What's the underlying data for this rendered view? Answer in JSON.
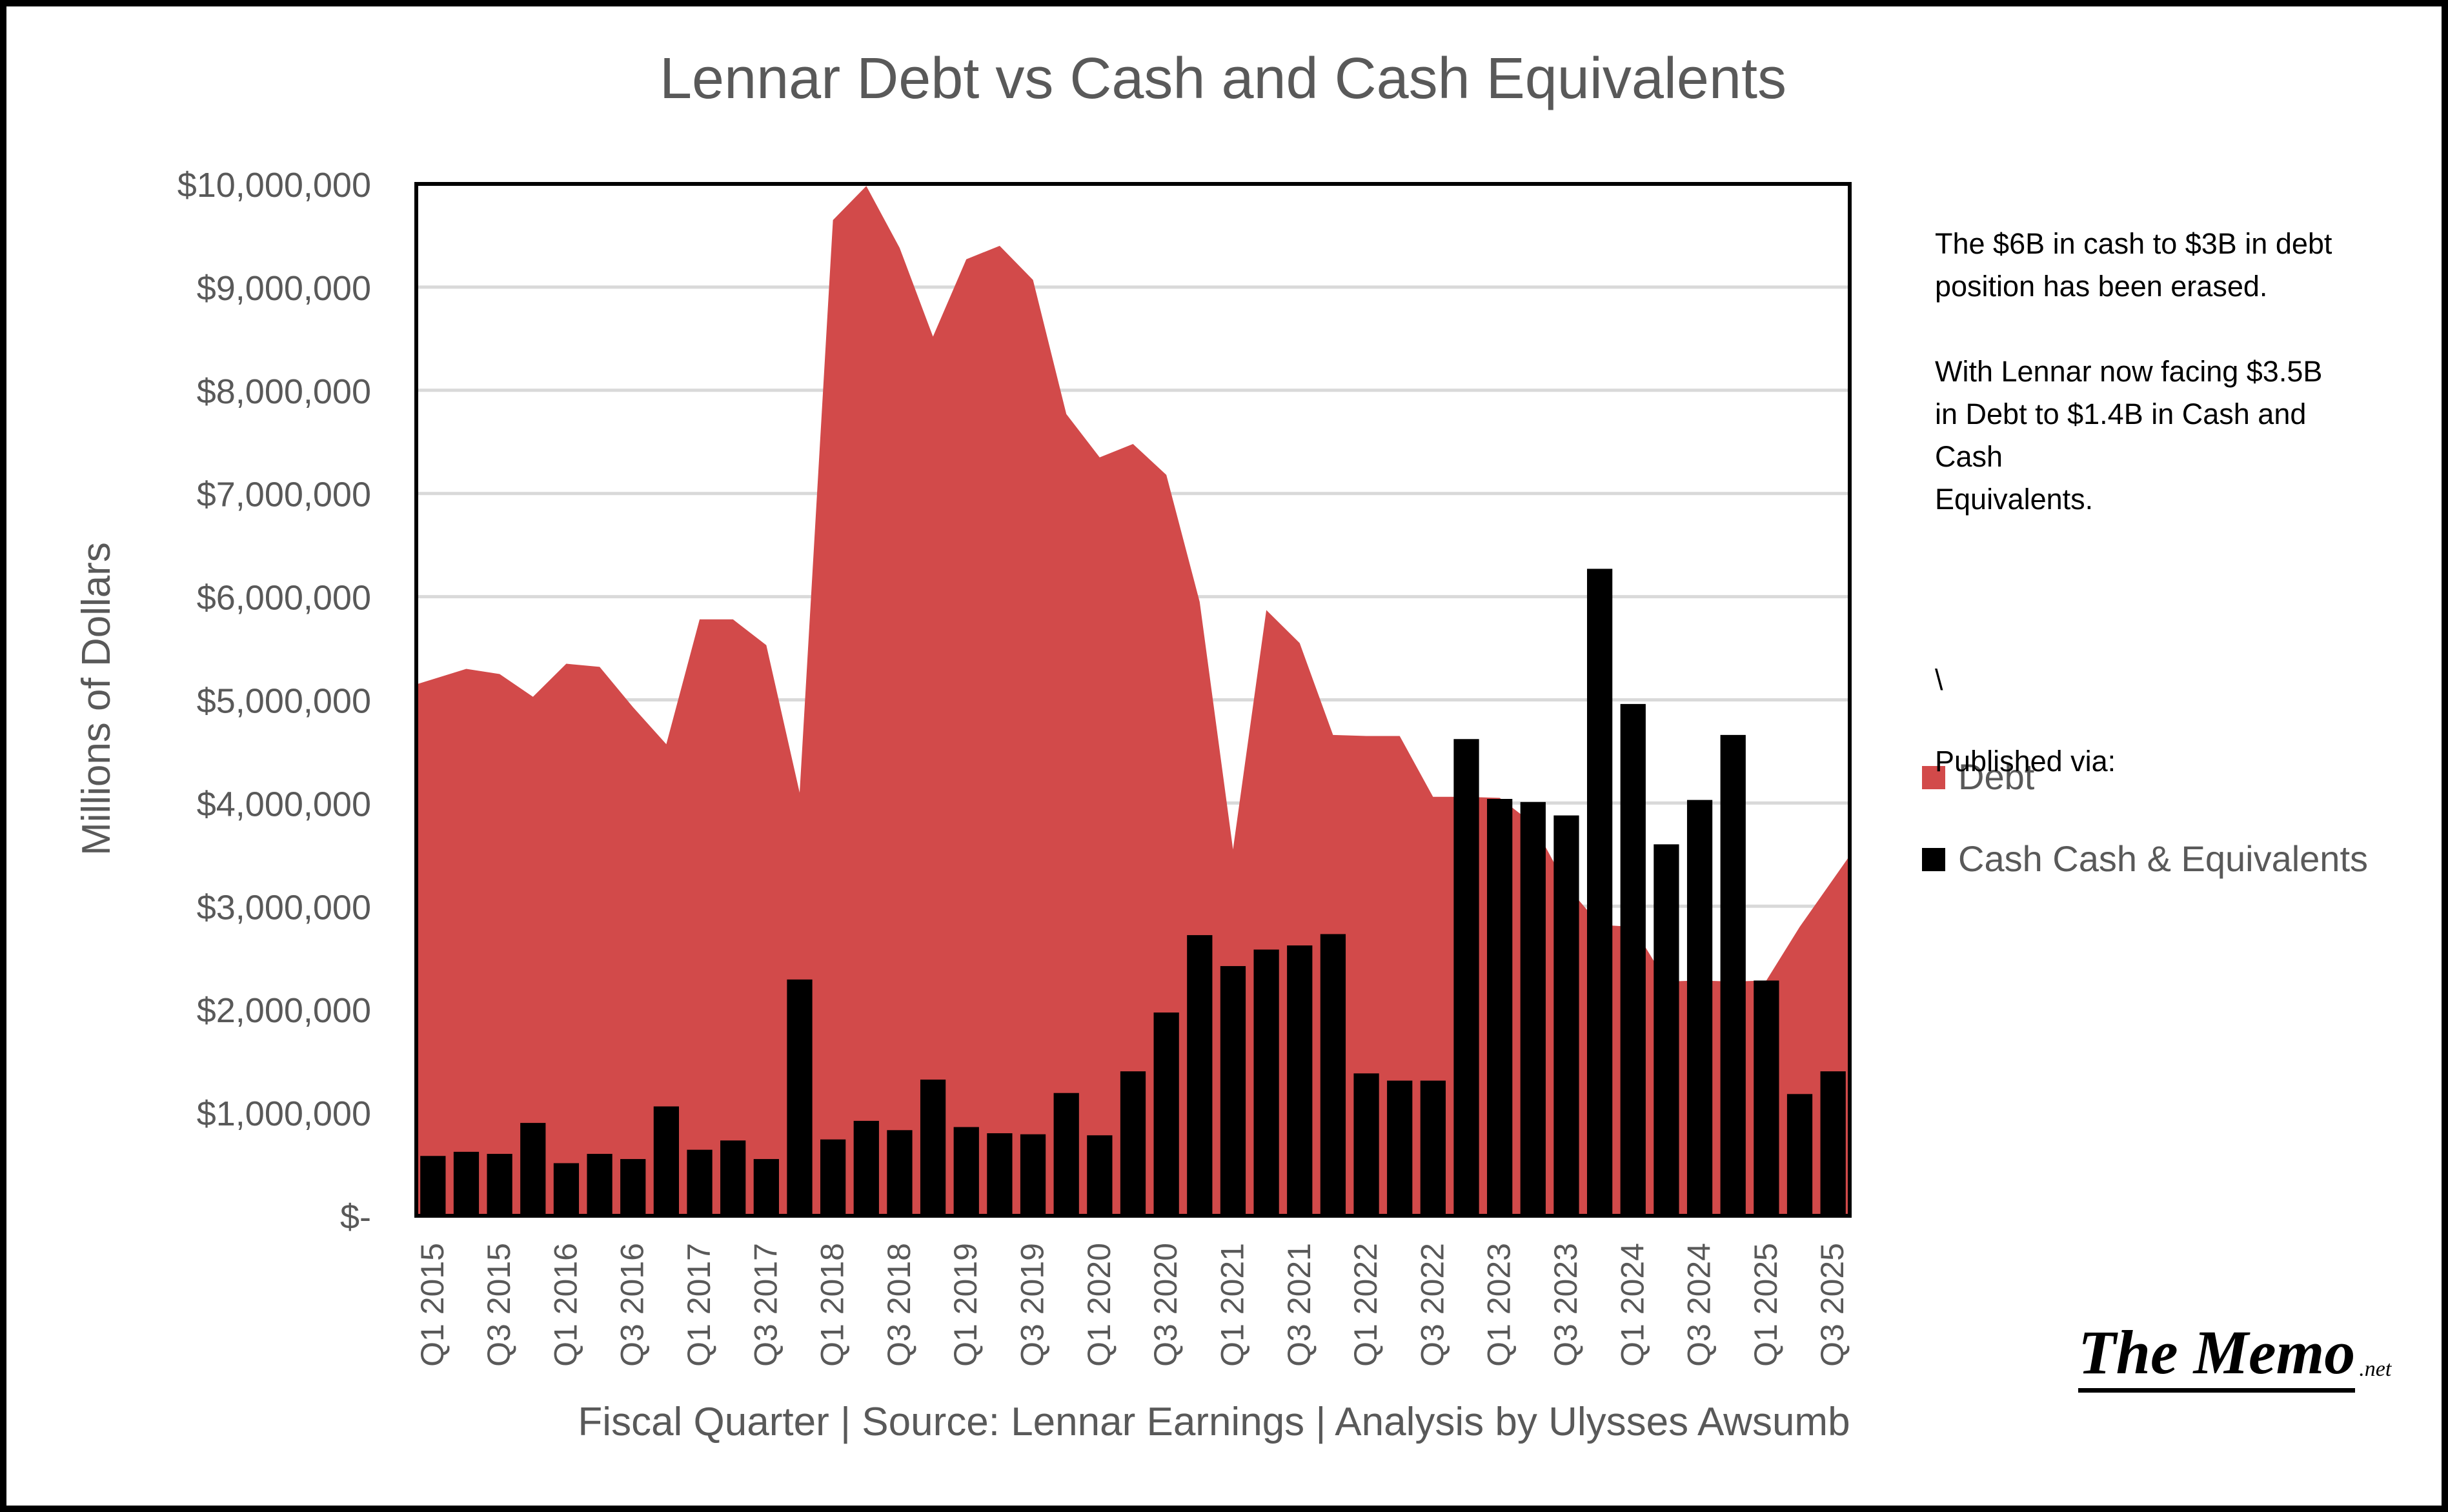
{
  "chart_data": {
    "type": "area+bar",
    "title": "Lennar Debt vs Cash and Cash Equivalents",
    "xlabel": "Fiscal Quarter  |  Source: Lennar Earnings  |  Analysis by Ulysses Awsumb",
    "ylabel": "Millions of Dollars",
    "ylim": [
      0,
      10000000
    ],
    "yticks": [
      {
        "value": 0,
        "label": "$-"
      },
      {
        "value": 1000000,
        "label": "$1,000,000"
      },
      {
        "value": 2000000,
        "label": "$2,000,000"
      },
      {
        "value": 3000000,
        "label": "$3,000,000"
      },
      {
        "value": 4000000,
        "label": "$4,000,000"
      },
      {
        "value": 5000000,
        "label": "$5,000,000"
      },
      {
        "value": 6000000,
        "label": "$6,000,000"
      },
      {
        "value": 7000000,
        "label": "$7,000,000"
      },
      {
        "value": 8000000,
        "label": "$8,000,000"
      },
      {
        "value": 9000000,
        "label": "$9,000,000"
      },
      {
        "value": 10000000,
        "label": "$10,000,000"
      }
    ],
    "grid": true,
    "legend_position": "right",
    "categories": [
      "Q1 2015",
      "Q2 2015",
      "Q3 2015",
      "Q4 2015",
      "Q1 2016",
      "Q2 2016",
      "Q3 2016",
      "Q4 2016",
      "Q1 2017",
      "Q2 2017",
      "Q3 2017",
      "Q4 2017",
      "Q1 2018",
      "Q2 2018",
      "Q3 2018",
      "Q4 2018",
      "Q1 2019",
      "Q2 2019",
      "Q3 2019",
      "Q4 2019",
      "Q1 2020",
      "Q2 2020",
      "Q3 2020",
      "Q4 2020",
      "Q1 2021",
      "Q2 2021",
      "Q3 2021",
      "Q4 2021",
      "Q1 2022",
      "Q2 2022",
      "Q3 2022",
      "Q4 2022",
      "Q1 2023",
      "Q2 2023",
      "Q3 2023",
      "Q4 2023",
      "Q1 2024",
      "Q2 2024",
      "Q3 2024",
      "Q4 2024",
      "Q1 2025",
      "Q2 2025",
      "Q3 2025"
    ],
    "x_tick_labels": [
      "Q1 2015",
      "Q3 2015",
      "Q1 2016",
      "Q3 2016",
      "Q1 2017",
      "Q3 2017",
      "Q1 2018",
      "Q3 2018",
      "Q1 2019",
      "Q3 2019",
      "Q1 2020",
      "Q3 2020",
      "Q1 2021",
      "Q3 2021",
      "Q1 2022",
      "Q3 2022",
      "Q1 2023",
      "Q3 2023",
      "Q1 2024",
      "Q3 2024",
      "Q1 2025",
      "Q3 2025"
    ],
    "series": [
      {
        "name": "Debt",
        "type": "area",
        "color": "#d24a4a",
        "values": [
          5150000,
          5300000,
          5250000,
          5030000,
          5350000,
          5320000,
          4930000,
          4570000,
          5780000,
          5780000,
          5530000,
          4100000,
          9650000,
          9980000,
          9380000,
          8520000,
          9270000,
          9400000,
          9070000,
          7770000,
          7350000,
          7480000,
          7180000,
          5950000,
          3550000,
          5870000,
          5550000,
          4660000,
          4650000,
          4650000,
          4060000,
          4060000,
          4050000,
          3800000,
          3200000,
          2820000,
          2800000,
          2270000,
          2280000,
          2270000,
          2280000,
          2800000,
          3490000
        ]
      },
      {
        "name": "Cash Cash & Equivalents",
        "type": "bar",
        "color": "#000000",
        "values": [
          580000,
          620000,
          600000,
          900000,
          510000,
          600000,
          550000,
          1060000,
          640000,
          730000,
          550000,
          2290000,
          740000,
          920000,
          830000,
          1320000,
          860000,
          800000,
          790000,
          1190000,
          780000,
          1400000,
          1970000,
          2720000,
          2420000,
          2580000,
          2620000,
          2730000,
          1380000,
          1310000,
          1310000,
          4620000,
          4040000,
          4010000,
          3880000,
          6270000,
          4960000,
          3600000,
          4030000,
          4660000,
          2280000,
          1180000,
          1400000
        ]
      }
    ]
  },
  "annotation": {
    "paragraph_1": "The $6B in cash to $3B in debt position has been erased.",
    "paragraph_2_lines": [
      "With Lennar now facing $3.5B",
      "in Debt to $1.4B in Cash and",
      "Cash",
      "Equivalents."
    ],
    "backslash": "\\",
    "published": "Published via:"
  },
  "logo": {
    "main": "The Memo",
    "suffix": ".net"
  }
}
